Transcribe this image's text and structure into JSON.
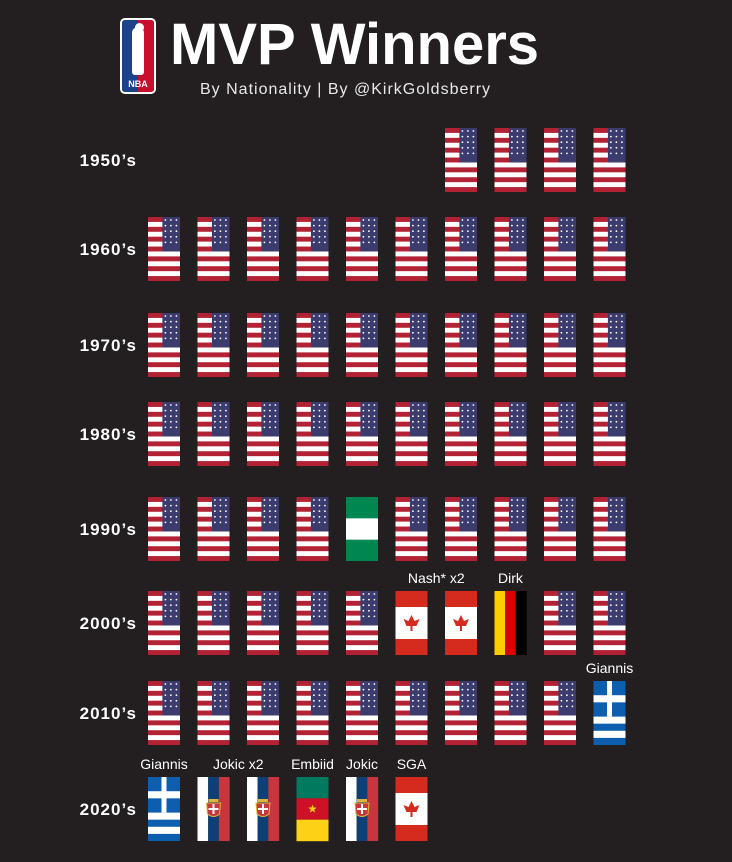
{
  "header": {
    "logo_text": "NBA",
    "title": "MVP Winners",
    "subtitle": "By Nationality | By @KirkGoldsberry"
  },
  "colors": {
    "background": "#231f20",
    "usa_red": "#b22234",
    "usa_blue": "#3c3b6e",
    "canada_red": "#d52b1e",
    "germany_red": "#dd0000",
    "germany_gold": "#ffce00",
    "nigeria_green": "#008751",
    "greece_blue": "#0d5eaf",
    "serbia_red": "#c6363c",
    "serbia_blue": "#0c4076",
    "cameroon_green": "#007a5e",
    "cameroon_red": "#ce1126",
    "cameroon_yellow": "#fcd116"
  },
  "chart_data": {
    "type": "pictograph",
    "title": "MVP Winners",
    "subtitle": "By Nationality | By @KirkGoldsberry",
    "rows": [
      {
        "decade": "1950’s",
        "start_slot": 6,
        "winners": [
          {
            "country": "USA"
          },
          {
            "country": "USA"
          },
          {
            "country": "USA"
          },
          {
            "country": "USA"
          }
        ]
      },
      {
        "decade": "1960’s",
        "start_slot": 0,
        "winners": [
          {
            "country": "USA"
          },
          {
            "country": "USA"
          },
          {
            "country": "USA"
          },
          {
            "country": "USA"
          },
          {
            "country": "USA"
          },
          {
            "country": "USA"
          },
          {
            "country": "USA"
          },
          {
            "country": "USA"
          },
          {
            "country": "USA"
          },
          {
            "country": "USA"
          }
        ]
      },
      {
        "decade": "1970’s",
        "start_slot": 0,
        "winners": [
          {
            "country": "USA"
          },
          {
            "country": "USA"
          },
          {
            "country": "USA"
          },
          {
            "country": "USA"
          },
          {
            "country": "USA"
          },
          {
            "country": "USA"
          },
          {
            "country": "USA"
          },
          {
            "country": "USA"
          },
          {
            "country": "USA"
          },
          {
            "country": "USA"
          }
        ]
      },
      {
        "decade": "1980’s",
        "start_slot": 0,
        "winners": [
          {
            "country": "USA"
          },
          {
            "country": "USA"
          },
          {
            "country": "USA"
          },
          {
            "country": "USA"
          },
          {
            "country": "USA"
          },
          {
            "country": "USA"
          },
          {
            "country": "USA"
          },
          {
            "country": "USA"
          },
          {
            "country": "USA"
          },
          {
            "country": "USA"
          }
        ]
      },
      {
        "decade": "1990’s",
        "start_slot": 0,
        "winners": [
          {
            "country": "USA"
          },
          {
            "country": "USA"
          },
          {
            "country": "USA"
          },
          {
            "country": "USA"
          },
          {
            "country": "Nigeria"
          },
          {
            "country": "USA"
          },
          {
            "country": "USA"
          },
          {
            "country": "USA"
          },
          {
            "country": "USA"
          },
          {
            "country": "USA"
          }
        ]
      },
      {
        "decade": "2000’s",
        "start_slot": 0,
        "winners": [
          {
            "country": "USA"
          },
          {
            "country": "USA"
          },
          {
            "country": "USA"
          },
          {
            "country": "USA"
          },
          {
            "country": "USA"
          },
          {
            "country": "Canada",
            "label": "Nash* x2",
            "label_span": 2
          },
          {
            "country": "Canada"
          },
          {
            "country": "Germany",
            "label": "Dirk"
          },
          {
            "country": "USA"
          },
          {
            "country": "USA"
          }
        ]
      },
      {
        "decade": "2010’s",
        "start_slot": 0,
        "winners": [
          {
            "country": "USA"
          },
          {
            "country": "USA"
          },
          {
            "country": "USA"
          },
          {
            "country": "USA"
          },
          {
            "country": "USA"
          },
          {
            "country": "USA"
          },
          {
            "country": "USA"
          },
          {
            "country": "USA"
          },
          {
            "country": "USA"
          },
          {
            "country": "Greece",
            "label": "Giannis"
          }
        ]
      },
      {
        "decade": "2020’s",
        "start_slot": 0,
        "winners": [
          {
            "country": "Greece",
            "label": "Giannis"
          },
          {
            "country": "Serbia",
            "label": "Jokic x2",
            "label_span": 2
          },
          {
            "country": "Serbia"
          },
          {
            "country": "Cameroon",
            "label": "Embiid"
          },
          {
            "country": "Serbia",
            "label": "Jokic"
          },
          {
            "country": "Canada",
            "label": "SGA"
          }
        ]
      }
    ]
  }
}
